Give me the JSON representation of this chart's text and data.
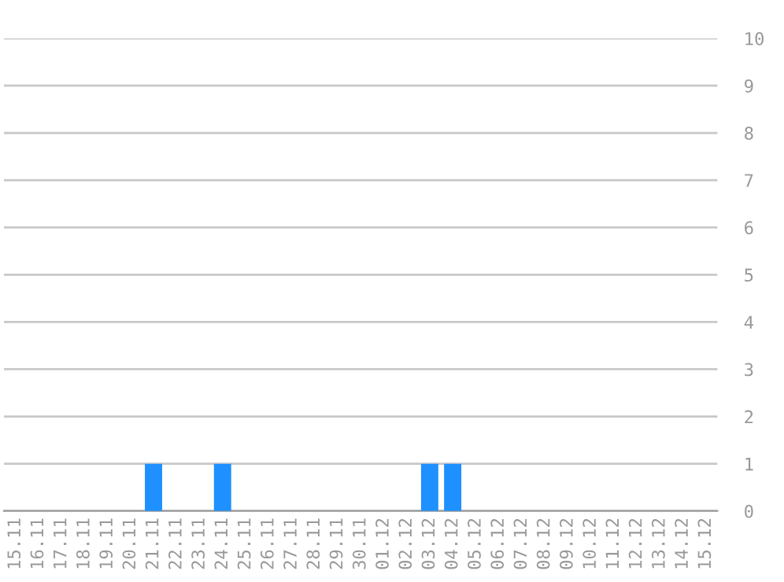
{
  "chart_data": {
    "type": "bar",
    "categories": [
      "15.11",
      "16.11",
      "17.11",
      "18.11",
      "19.11",
      "20.11",
      "21.11",
      "22.11",
      "23.11",
      "24.11",
      "25.11",
      "26.11",
      "27.11",
      "28.11",
      "29.11",
      "30.11",
      "01.12",
      "02.12",
      "03.12",
      "04.12",
      "05.12",
      "06.12",
      "07.12",
      "08.12",
      "09.12",
      "10.12",
      "11.12",
      "12.12",
      "13.12",
      "14.12",
      "15.12"
    ],
    "values": [
      0,
      0,
      0,
      0,
      0,
      0,
      1,
      0,
      0,
      1,
      0,
      0,
      0,
      0,
      0,
      0,
      0,
      0,
      1,
      1,
      0,
      0,
      0,
      0,
      0,
      0,
      0,
      0,
      0,
      0,
      0
    ],
    "color": "#1e90ff",
    "ylim": [
      0,
      10
    ],
    "yticks": [
      0,
      1,
      2,
      3,
      4,
      5,
      6,
      7,
      8,
      9,
      10
    ],
    "grid": "y"
  }
}
